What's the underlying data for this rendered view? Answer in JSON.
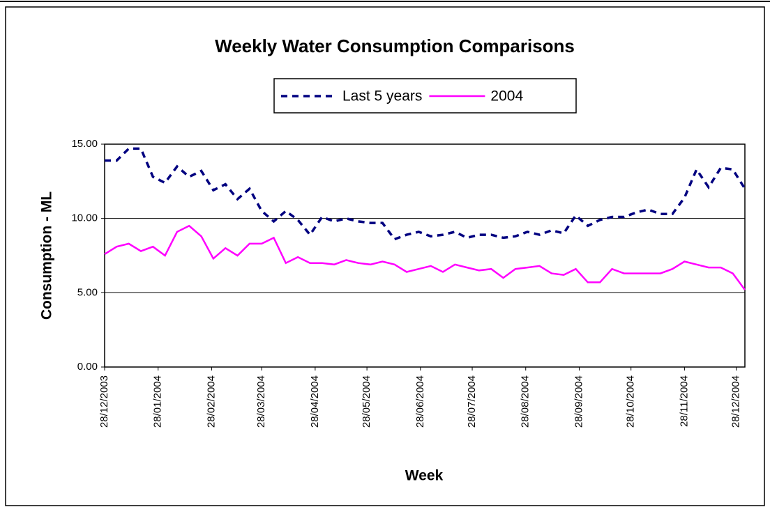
{
  "chart_data": {
    "type": "line",
    "title": "Weekly Water Consumption Comparisons",
    "x_label": "Week",
    "y_label": "Consumption - ML",
    "legend": "top",
    "grid": true,
    "x": [
      "28/12/2003",
      "04/01/2004",
      "11/01/2004",
      "18/01/2004",
      "25/01/2004",
      "01/02/2004",
      "08/02/2004",
      "15/02/2004",
      "22/02/2004",
      "29/02/2004",
      "07/03/2004",
      "14/03/2004",
      "21/03/2004",
      "28/03/2004",
      "04/04/2004",
      "11/04/2004",
      "18/04/2004",
      "25/04/2004",
      "02/05/2004",
      "09/05/2004",
      "16/05/2004",
      "23/05/2004",
      "30/05/2004",
      "06/06/2004",
      "13/06/2004",
      "20/06/2004",
      "27/06/2004",
      "04/07/2004",
      "11/07/2004",
      "18/07/2004",
      "25/07/2004",
      "01/08/2004",
      "08/08/2004",
      "15/08/2004",
      "22/08/2004",
      "29/08/2004",
      "05/09/2004",
      "12/09/2004",
      "19/09/2004",
      "26/09/2004",
      "03/10/2004",
      "10/10/2004",
      "17/10/2004",
      "24/10/2004",
      "31/10/2004",
      "07/11/2004",
      "14/11/2004",
      "21/11/2004",
      "28/11/2004",
      "05/12/2004",
      "12/12/2004",
      "19/12/2004",
      "26/12/2004",
      "02/01/2005"
    ],
    "xlim": [
      "28/12/2003",
      "02/01/2005"
    ],
    "xticks": [
      "28/12/2003",
      "28/01/2004",
      "28/02/2004",
      "28/03/2004",
      "28/04/2004",
      "28/05/2004",
      "28/06/2004",
      "28/07/2004",
      "28/08/2004",
      "28/09/2004",
      "28/10/2004",
      "28/11/2004",
      "28/12/2004"
    ],
    "ylim": [
      0,
      15
    ],
    "yticks": [
      {
        "value": 0,
        "label": "0.00"
      },
      {
        "value": 5,
        "label": "5.00"
      },
      {
        "value": 10,
        "label": "10.00"
      },
      {
        "value": 15,
        "label": "15.00"
      }
    ],
    "series": [
      {
        "name": "Last 5 years",
        "color": "#000080",
        "dash": true,
        "values": [
          13.9,
          13.9,
          14.7,
          14.7,
          12.8,
          12.4,
          13.5,
          12.8,
          13.2,
          11.9,
          12.3,
          11.3,
          12.0,
          10.5,
          9.8,
          10.5,
          9.9,
          8.9,
          10.1,
          9.8,
          10.0,
          9.8,
          9.7,
          9.7,
          8.6,
          8.9,
          9.1,
          8.8,
          8.9,
          9.1,
          8.7,
          8.9,
          8.9,
          8.7,
          8.8,
          9.1,
          8.9,
          9.2,
          9.0,
          10.2,
          9.5,
          9.9,
          10.1,
          10.1,
          10.4,
          10.6,
          10.3,
          10.3,
          11.4,
          13.3,
          12.1,
          13.4,
          13.3,
          12.0
        ]
      },
      {
        "name": "2004",
        "color": "#ff00ff",
        "dash": false,
        "values": [
          7.6,
          8.1,
          8.3,
          7.8,
          8.1,
          7.5,
          9.1,
          9.5,
          8.8,
          7.3,
          8.0,
          7.5,
          8.3,
          8.3,
          8.7,
          7.0,
          7.4,
          7.0,
          7.0,
          6.9,
          7.2,
          7.0,
          6.9,
          7.1,
          6.9,
          6.4,
          6.6,
          6.8,
          6.4,
          6.9,
          6.7,
          6.5,
          6.6,
          6.0,
          6.6,
          6.7,
          6.8,
          6.3,
          6.2,
          6.6,
          5.7,
          5.7,
          6.6,
          6.3,
          6.3,
          6.3,
          6.3,
          6.6,
          7.1,
          6.9,
          6.7,
          6.7,
          6.3,
          5.2
        ]
      }
    ]
  }
}
